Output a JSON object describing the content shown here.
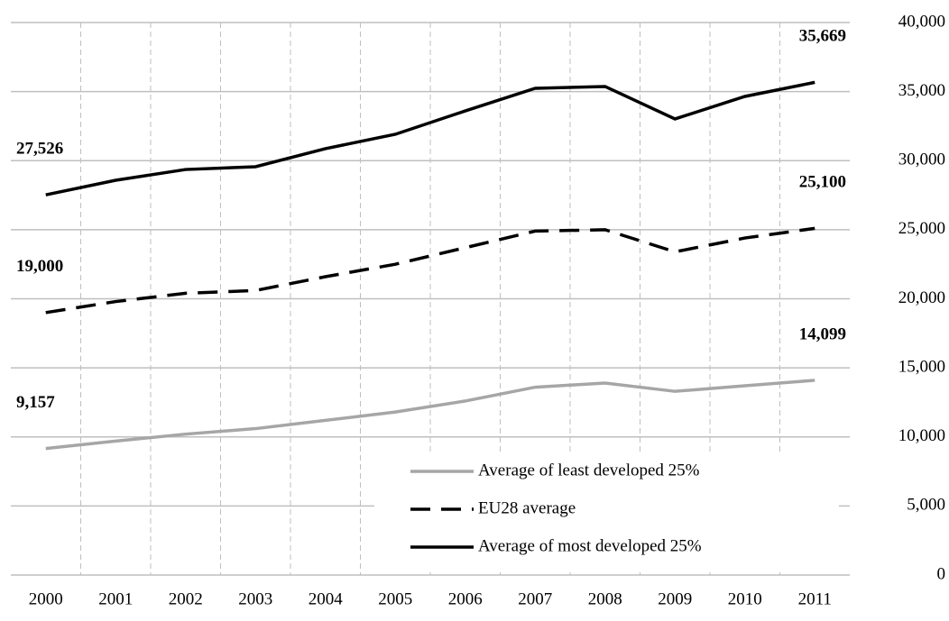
{
  "chart_data": {
    "type": "line",
    "categories": [
      "2000",
      "2001",
      "2002",
      "2003",
      "2004",
      "2005",
      "2006",
      "2007",
      "2008",
      "2009",
      "2010",
      "2011"
    ],
    "series": [
      {
        "name": "Average of least developed 25%",
        "color": "#a6a6a6",
        "dash": "solid",
        "values": [
          9157,
          9700,
          10200,
          10600,
          11200,
          11800,
          12600,
          13600,
          13900,
          13300,
          13700,
          14099
        ],
        "value_labels": [
          "9,157",
          null,
          null,
          null,
          null,
          null,
          null,
          null,
          null,
          null,
          null,
          "14,099"
        ]
      },
      {
        "name": "EU28 average",
        "color": "#000000",
        "dash": "dashed",
        "values": [
          19000,
          19800,
          20400,
          20600,
          21600,
          22500,
          23700,
          24900,
          25000,
          23400,
          24400,
          25100
        ],
        "value_labels": [
          "19,000",
          null,
          null,
          null,
          null,
          null,
          null,
          null,
          null,
          null,
          null,
          "25,100"
        ]
      },
      {
        "name": "Average of most developed 25%",
        "color": "#000000",
        "dash": "solid",
        "values": [
          27526,
          28580,
          29360,
          29560,
          30870,
          31910,
          33600,
          35240,
          35370,
          33020,
          34650,
          35669
        ],
        "value_labels": [
          "27,526",
          null,
          null,
          null,
          null,
          null,
          null,
          null,
          null,
          null,
          null,
          "35,669"
        ]
      }
    ],
    "ylim": [
      0,
      40000
    ],
    "yticks": [
      0,
      {
        "value": 5000,
        "label": "5,000"
      },
      {
        "value": 10000,
        "label": "10,000"
      },
      {
        "value": 15000,
        "label": "15,000"
      },
      {
        "value": 20000,
        "label": "20,000"
      },
      {
        "value": 25000,
        "label": "25,000"
      },
      {
        "value": 30000,
        "label": "30,000"
      },
      {
        "value": 35000,
        "label": "35,000"
      },
      {
        "value": 40000,
        "label": "40,000"
      }
    ],
    "y_axis_side": "right",
    "grid": true,
    "legend": "lower right"
  }
}
